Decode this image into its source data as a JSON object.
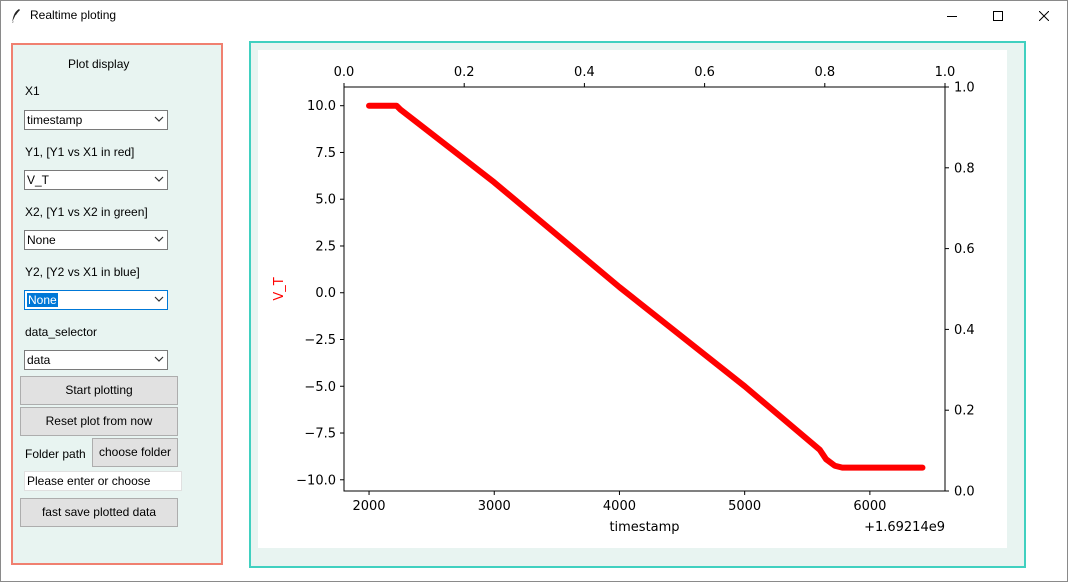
{
  "window": {
    "title": "Realtime ploting",
    "icon": "feather-icon",
    "controls": [
      "minimize-icon",
      "maximize-icon",
      "close-icon"
    ]
  },
  "left_panel": {
    "header": "Plot display",
    "x1": {
      "label": "X1",
      "value": "timestamp"
    },
    "y1": {
      "label": "Y1, [Y1 vs X1 in red]",
      "value": "V_T"
    },
    "x2": {
      "label": "X2, [Y1 vs X2 in green]",
      "value": "None"
    },
    "y2": {
      "label": "Y2, [Y2 vs X1 in blue]",
      "value": "None"
    },
    "data_selector": {
      "label": "data_selector",
      "value": "data"
    },
    "start_button": "Start plotting",
    "reset_button": "Reset plot from now",
    "folder_label": "Folder path",
    "choose_folder_button": "choose folder",
    "folder_entry": "Please enter or choose",
    "save_button": "fast save plotted data"
  },
  "colors": {
    "left_border": "#f08070",
    "plot_border": "#40d0c0",
    "panel_bg": "#e8f4f1",
    "series_red": "#ff0000"
  },
  "chart_data": {
    "type": "line",
    "xlabel": "timestamp",
    "ylabel": "V_T",
    "ylabel_color": "#ff0000",
    "x_offset_text": "+1.69214e9",
    "xlim": [
      1800,
      6600
    ],
    "ylim": [
      -10.6,
      11.0
    ],
    "x_ticks": [
      "2000",
      "3000",
      "4000",
      "5000",
      "6000"
    ],
    "y_ticks": [
      "10.0",
      "7.5",
      "5.0",
      "2.5",
      "0.0",
      "−2.5",
      "−5.0",
      "−7.5",
      "−10.0"
    ],
    "top_ticks": [
      "0.0",
      "0.2",
      "0.4",
      "0.6",
      "0.8",
      "1.0"
    ],
    "right_ticks": [
      "1.0",
      "0.8",
      "0.6",
      "0.4",
      "0.2",
      "0.0"
    ],
    "series": [
      {
        "color": "#ff0000",
        "x": [
          2000,
          2220,
          2250,
          3000,
          4000,
          5000,
          5600,
          5650,
          5720,
          5780,
          6420
        ],
        "y": [
          10.0,
          10.0,
          9.8,
          5.9,
          0.3,
          -5.0,
          -8.4,
          -8.9,
          -9.25,
          -9.35,
          -9.35
        ]
      }
    ]
  }
}
